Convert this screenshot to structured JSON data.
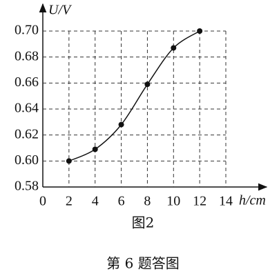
{
  "chart_data": {
    "type": "line",
    "y_label": "U/V",
    "x_label": "h/cm",
    "figure_label": "图2",
    "caption": "第 6 题答图",
    "x": [
      2,
      4,
      6,
      8,
      10,
      12
    ],
    "series": [
      {
        "color": "#111111",
        "values": [
          0.6,
          0.609,
          0.628,
          0.659,
          0.687,
          0.7
        ]
      }
    ],
    "xlim": [
      0,
      14
    ],
    "ylim": [
      0.58,
      0.7
    ],
    "xticks": [
      0,
      2,
      4,
      6,
      8,
      10,
      12,
      14
    ],
    "yticks": [
      0.58,
      {
        "value": 0.6,
        "label": "0.60"
      },
      0.62,
      0.64,
      0.66,
      0.68,
      {
        "value": 0.7,
        "label": "0.70"
      }
    ],
    "grid": true,
    "smooth": true,
    "markers": true
  }
}
